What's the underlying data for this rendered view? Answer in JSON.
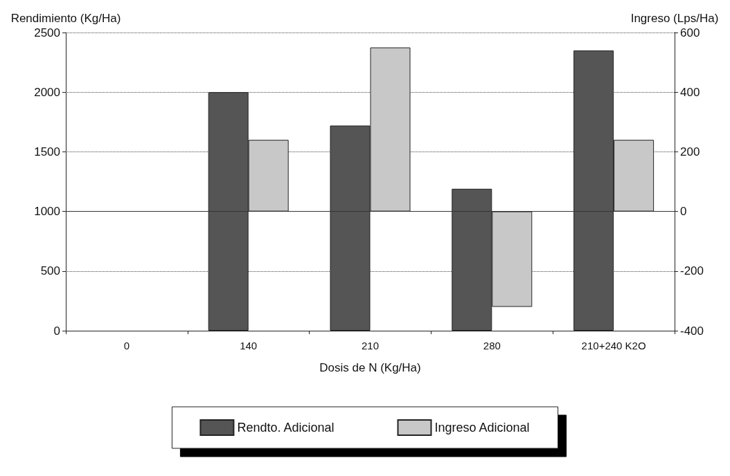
{
  "chart_data": {
    "type": "bar",
    "xlabel": "Dosis de N (Kg/Ha)",
    "ylabel": "Rendimiento (Kg/Ha)",
    "y2label": "Ingreso (Lps/Ha)",
    "categories": [
      "0",
      "140",
      "210",
      "280",
      "210+240 K2O"
    ],
    "series": [
      {
        "name": "Rendto. Adicional",
        "color": "#555555",
        "values": [
          0,
          2000,
          1720,
          1190,
          2350
        ]
      },
      {
        "name": "Ingreso Adicional",
        "color": "#c8c8c8",
        "axis": "y2",
        "values": [
          0,
          240,
          550,
          -320,
          240
        ]
      }
    ],
    "ylim": [
      0,
      2500
    ],
    "yticks": [
      0,
      500,
      1000,
      1500,
      2000,
      2500
    ],
    "y2lim": [
      -400,
      600
    ],
    "y2ticks": [
      -400,
      -200,
      0,
      200,
      400,
      600
    ],
    "ref_lines": [
      {
        "axis": "y2",
        "value": 0,
        "color": "#333333",
        "line_style": "solid"
      }
    ],
    "grid": "y",
    "legend": "bottom"
  }
}
